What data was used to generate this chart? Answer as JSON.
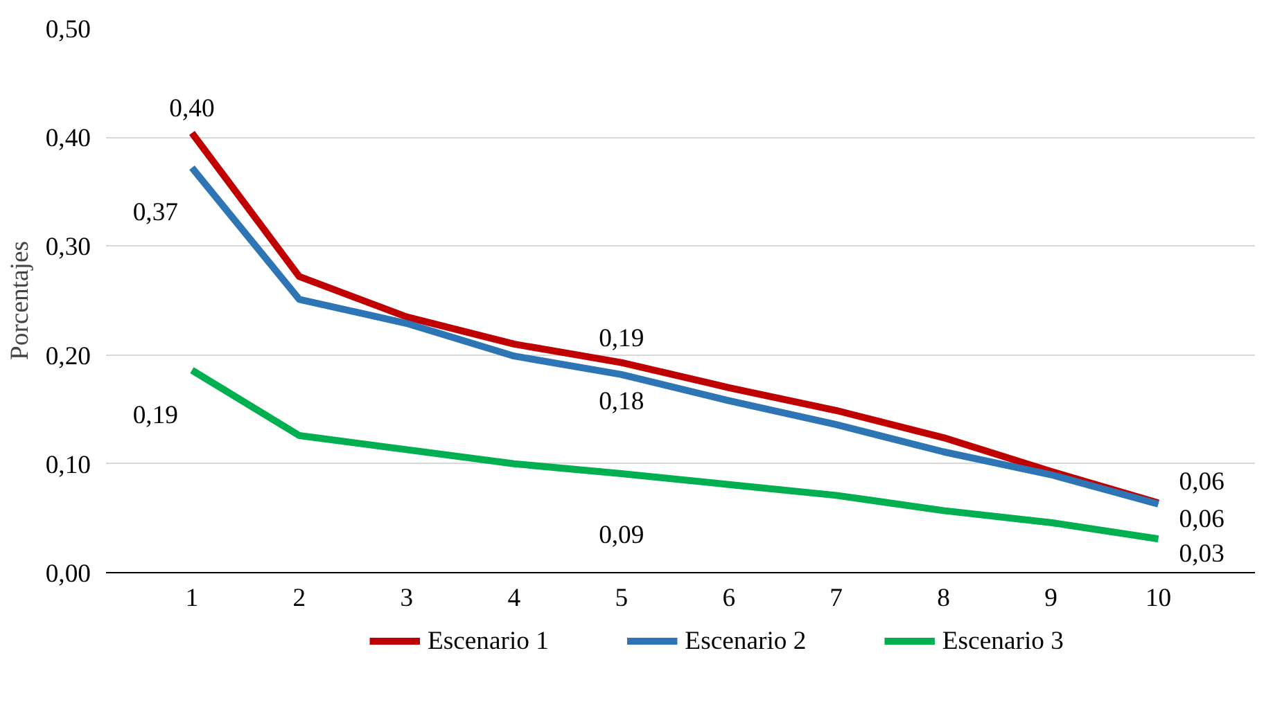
{
  "chart_data": {
    "type": "line",
    "ylabel": "Porcentajes",
    "categories": [
      "1",
      "2",
      "3",
      "4",
      "5",
      "6",
      "7",
      "8",
      "9",
      "10"
    ],
    "series": [
      {
        "name": "Escenario 1",
        "color": "#c00000",
        "values": [
          0.404,
          0.272,
          0.235,
          0.21,
          0.193,
          0.17,
          0.149,
          0.124,
          0.093,
          0.064
        ],
        "value_labels": [
          "0,40",
          null,
          null,
          null,
          "0,19",
          null,
          null,
          null,
          null,
          "0,06"
        ]
      },
      {
        "name": "Escenario 2",
        "color": "#2e75b6",
        "values": [
          0.372,
          0.251,
          0.229,
          0.199,
          0.182,
          0.158,
          0.136,
          0.111,
          0.09,
          0.063
        ],
        "value_labels": [
          "0,37",
          null,
          null,
          null,
          "0,18",
          null,
          null,
          null,
          null,
          "0,06"
        ]
      },
      {
        "name": "Escenario 3",
        "color": "#00b050",
        "values": [
          0.186,
          0.126,
          0.113,
          0.1,
          0.091,
          0.081,
          0.071,
          0.057,
          0.046,
          0.031
        ],
        "value_labels": [
          "0,19",
          null,
          null,
          null,
          "0,09",
          null,
          null,
          null,
          null,
          "0,03"
        ]
      }
    ],
    "ylim": [
      0,
      0.5
    ],
    "yticks": [
      {
        "value": 0,
        "label": "0,00"
      },
      {
        "value": 0.1,
        "label": "0,10"
      },
      {
        "value": 0.2,
        "label": "0,20"
      },
      {
        "value": 0.3,
        "label": "0,30"
      },
      {
        "value": 0.4,
        "label": "0,40"
      },
      {
        "value": 0.5,
        "label": "0,50"
      }
    ],
    "grid": "y",
    "legend": "bottom",
    "marker": "none",
    "line_style": "solid"
  }
}
